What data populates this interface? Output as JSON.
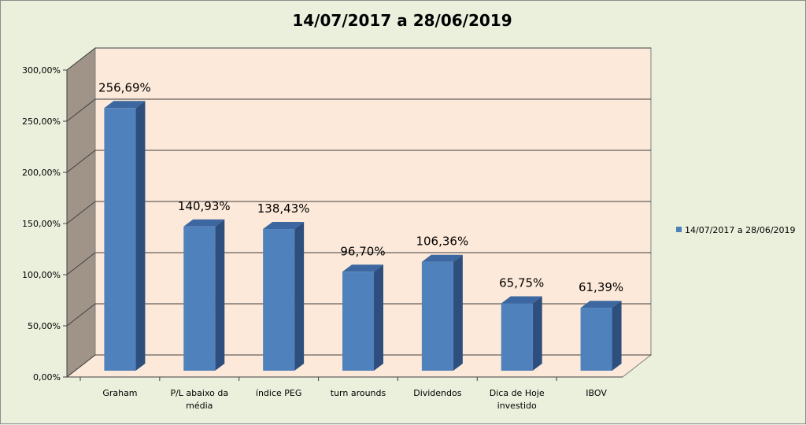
{
  "chart_data": {
    "type": "bar",
    "title": "14/07/2017 a 28/06/2019",
    "categories": [
      "Graham",
      "P/L abaixo da média",
      "índice PEG",
      "turn arounds",
      "Dividendos",
      "Dica de Hoje investido",
      "IBOV"
    ],
    "category_lines": [
      [
        "Graham"
      ],
      [
        "P/L abaixo da",
        "média"
      ],
      [
        "índice PEG"
      ],
      [
        "turn arounds"
      ],
      [
        "Dividendos"
      ],
      [
        "Dica de Hoje",
        "investido"
      ],
      [
        "IBOV"
      ]
    ],
    "series": [
      {
        "name": "14/07/2017 a 28/06/2019",
        "values": [
          256.69,
          140.93,
          138.43,
          96.7,
          106.36,
          65.75,
          61.39
        ],
        "labels": [
          "256,69%",
          "140,93%",
          "138,43%",
          "96,70%",
          "106,36%",
          "65,75%",
          "61,39%"
        ]
      }
    ],
    "ylim": [
      0,
      300
    ],
    "yticks": [
      0,
      50,
      100,
      150,
      200,
      250,
      300
    ],
    "ytick_labels": [
      "0,00%",
      "50,00%",
      "100,00%",
      "150,00%",
      "200,00%",
      "250,00%",
      "300,00%"
    ],
    "grid": true,
    "legend_position": "right",
    "colors": {
      "bar_front": "#4f81bd",
      "bar_top": "#3c67a0",
      "bar_side": "#2e4f7e",
      "back_wall": "#fde9d9",
      "side_wall": "#a09488",
      "floor": "#fde9d9",
      "gridline": "#404040",
      "background": "#eaf0dc"
    }
  }
}
